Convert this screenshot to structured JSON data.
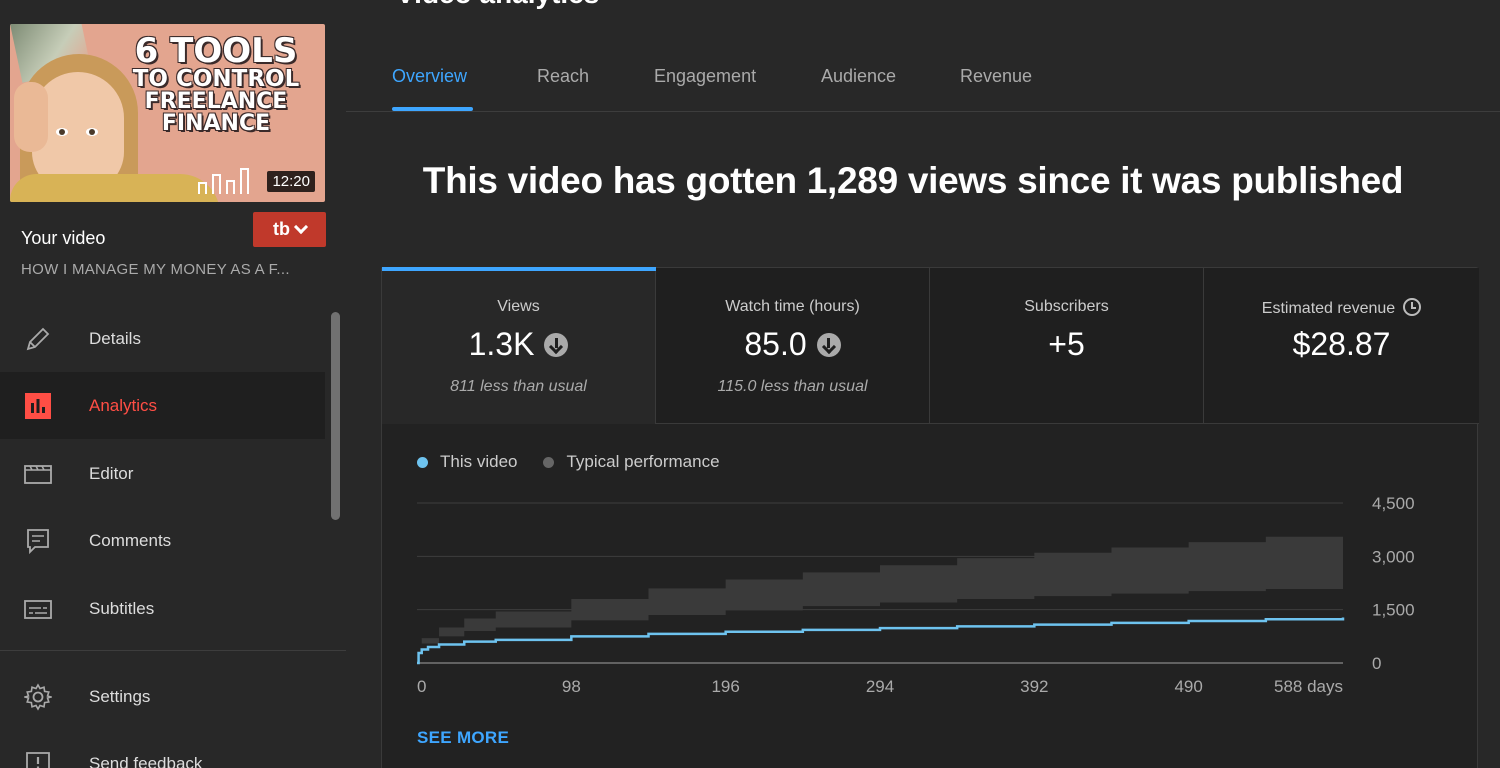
{
  "sidebar": {
    "thumbnail": {
      "title_lines": [
        "6 TOOLS",
        "TO CONTROL",
        "FREELANCE",
        "FINANCE"
      ],
      "duration": "12:20"
    },
    "your_video_label": "Your video",
    "video_title": "HOW I MANAGE MY MONEY AS A F...",
    "tb_label": "tb",
    "items": [
      {
        "label": "Details",
        "icon": "pencil-icon"
      },
      {
        "label": "Analytics",
        "icon": "analytics-icon",
        "active": true
      },
      {
        "label": "Editor",
        "icon": "clapperboard-icon"
      },
      {
        "label": "Comments",
        "icon": "comment-icon"
      },
      {
        "label": "Subtitles",
        "icon": "subtitles-icon"
      },
      {
        "label": "Settings",
        "icon": "gear-icon"
      },
      {
        "label": "Send feedback",
        "icon": "feedback-icon"
      }
    ]
  },
  "header": {
    "title": "Video analytics",
    "tabs": [
      {
        "label": "Overview",
        "active": true
      },
      {
        "label": "Reach"
      },
      {
        "label": "Engagement"
      },
      {
        "label": "Audience"
      },
      {
        "label": "Revenue"
      }
    ]
  },
  "headline": "This video has gotten 1,289 views since it was published",
  "metrics": [
    {
      "label": "Views",
      "value": "1.3K",
      "sub": "811 less than usual",
      "trend": "down"
    },
    {
      "label": "Watch time (hours)",
      "value": "85.0",
      "sub": "115.0 less than usual",
      "trend": "down"
    },
    {
      "label": "Subscribers",
      "value": "+5",
      "sub": ""
    },
    {
      "label": "Estimated revenue",
      "value": "$28.87",
      "sub": ""
    }
  ],
  "see_more": "SEE MORE",
  "colors": {
    "accent": "#3ea6ff",
    "this_video": "#6ec3ef",
    "typical_band": "#3a3a3a",
    "active_nav": "#ff4e45"
  },
  "chart_data": {
    "type": "line",
    "legend": [
      "This video",
      "Typical performance"
    ],
    "x_tick_labels": [
      "0",
      "98",
      "196",
      "294",
      "392",
      "490",
      "588 days"
    ],
    "x_ticks": [
      0,
      98,
      196,
      294,
      392,
      490,
      588
    ],
    "y_tick_labels": [
      "0",
      "1,500",
      "3,000",
      "4,500"
    ],
    "y_ticks": [
      0,
      1500,
      3000,
      4500
    ],
    "xlim": [
      0,
      588
    ],
    "ylim": [
      0,
      4500
    ],
    "series": [
      {
        "name": "This video",
        "x": [
          0,
          1,
          3,
          7,
          14,
          30,
          50,
          98,
          147,
          196,
          245,
          294,
          343,
          392,
          441,
          490,
          539,
          588
        ],
        "y": [
          0,
          280,
          380,
          450,
          520,
          600,
          650,
          750,
          820,
          880,
          930,
          980,
          1030,
          1080,
          1130,
          1180,
          1230,
          1280
        ]
      },
      {
        "name": "Typical performance",
        "x": [
          0,
          3,
          14,
          30,
          50,
          98,
          147,
          196,
          245,
          294,
          343,
          392,
          441,
          490,
          539,
          588
        ],
        "low": [
          0,
          550,
          750,
          900,
          1000,
          1200,
          1350,
          1480,
          1600,
          1700,
          1800,
          1880,
          1950,
          2020,
          2080,
          2130
        ],
        "high": [
          0,
          700,
          1000,
          1250,
          1450,
          1800,
          2100,
          2350,
          2550,
          2750,
          2950,
          3100,
          3250,
          3400,
          3550,
          3870
        ]
      }
    ]
  }
}
